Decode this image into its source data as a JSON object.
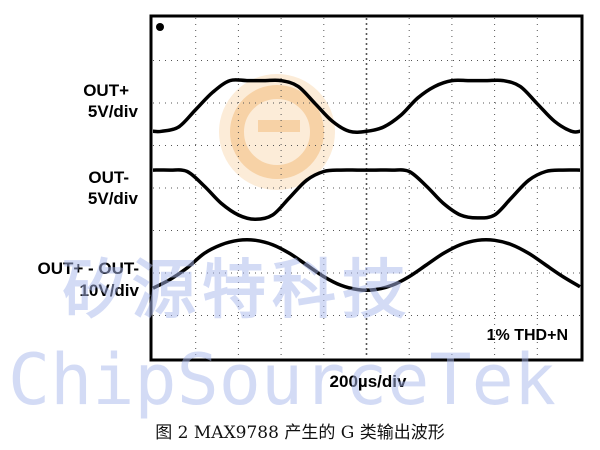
{
  "watermark": {
    "chinese": "矽源特科技",
    "english": "ChipSourceTek"
  },
  "colors": {
    "trace": "#000000",
    "grid": "#555555",
    "frame": "#000000",
    "watermark": "#a9b8ec",
    "logo": "#f2b36a"
  },
  "chart_data": {
    "type": "line",
    "title": "",
    "xlabel": "200µs/div",
    "ylabel": "",
    "x_divisions": 10,
    "y_divisions": 8,
    "annotation": "1% THD+N",
    "caption": "图 2   MAX9788 产生的 G 类输出波形",
    "channels": [
      {
        "name_line1": "OUT+",
        "name_line2": "5V/div",
        "ylim": [
          -20,
          20
        ],
        "x": [
          0,
          0.2,
          0.6,
          1.0,
          1.4,
          1.8,
          2.2,
          2.6,
          3.0,
          3.4,
          3.8,
          4.2,
          4.6,
          5.0,
          5.4,
          5.8,
          6.2,
          6.6,
          7.0,
          7.4,
          7.8,
          8.2,
          8.6,
          9.0,
          9.4,
          9.8,
          10.0
        ],
        "y": [
          -11.5,
          -11.5,
          -10,
          -4,
          2,
          6,
          6,
          6,
          6,
          4,
          -2,
          -8,
          -11.5,
          -11.5,
          -10,
          -6,
          0,
          4,
          6,
          6,
          6,
          6,
          4,
          -2,
          -8,
          -11.5,
          -11.5
        ]
      },
      {
        "name_line1": "OUT-",
        "name_line2": "5V/div",
        "ylim": [
          -20,
          20
        ],
        "x": [
          0,
          0.4,
          0.8,
          1.2,
          1.6,
          2.0,
          2.4,
          2.8,
          3.2,
          3.6,
          4.0,
          4.4,
          4.8,
          5.2,
          5.6,
          6.0,
          6.4,
          6.8,
          7.2,
          7.6,
          8.0,
          8.4,
          8.8,
          9.2,
          9.6,
          10.0
        ],
        "y": [
          5.5,
          5.5,
          5,
          0,
          -6,
          -10,
          -11.5,
          -10,
          -4,
          2,
          5,
          5.5,
          5.5,
          5.5,
          5.5,
          5,
          0,
          -6,
          -10,
          -11,
          -10,
          -4,
          2,
          5,
          5.5,
          5.5
        ]
      },
      {
        "name_line1": "OUT+ - OUT-",
        "name_line2": "10V/div",
        "ylim": [
          -40,
          40
        ],
        "x": [
          0,
          0.4,
          0.8,
          1.2,
          1.6,
          2.0,
          2.4,
          2.8,
          3.2,
          3.6,
          4.0,
          4.4,
          4.8,
          5.2,
          5.6,
          6.0,
          6.4,
          6.8,
          7.2,
          7.6,
          8.0,
          8.4,
          8.8,
          9.2,
          9.6,
          10.0
        ],
        "y": [
          -16,
          -10,
          -2,
          8,
          14,
          17,
          17,
          14,
          8,
          0,
          -8,
          -14,
          -17,
          -17,
          -14,
          -8,
          0,
          8,
          14,
          17,
          17,
          14,
          8,
          0,
          -8,
          -15
        ]
      }
    ]
  }
}
